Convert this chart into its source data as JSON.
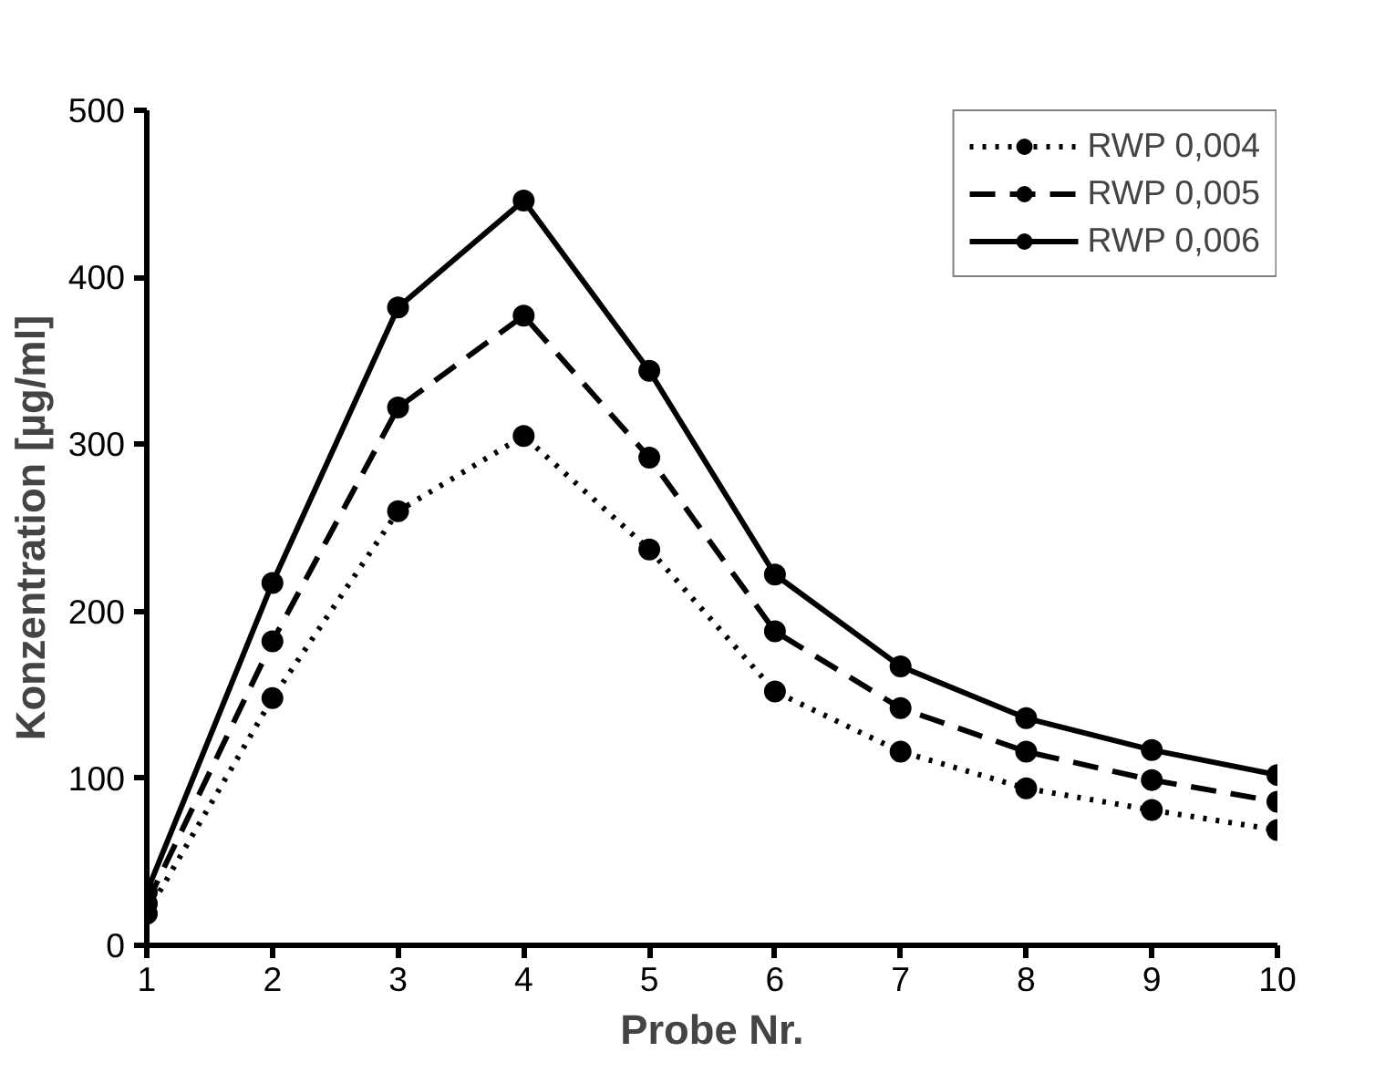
{
  "chart_data": {
    "type": "line",
    "xlabel": "Probe Nr.",
    "ylabel": "Konzentration [µg/ml]",
    "x": [
      1,
      2,
      3,
      4,
      5,
      6,
      7,
      8,
      9,
      10
    ],
    "xlim": [
      1,
      10
    ],
    "xticks": [
      1,
      2,
      3,
      4,
      5,
      6,
      7,
      8,
      9,
      10
    ],
    "ylim": [
      0,
      500
    ],
    "yticks": [
      0,
      100,
      200,
      300,
      400,
      500
    ],
    "grid": false,
    "legend": "top right",
    "marker": "circle",
    "series": [
      {
        "name": "RWP 0,006",
        "color": "#000000",
        "line_style": "solid",
        "values": [
          32,
          217,
          382,
          446,
          344,
          222,
          167,
          136,
          117,
          102
        ]
      },
      {
        "name": "RWP 0,005",
        "color": "#000000",
        "line_style": "dashed",
        "values": [
          25,
          182,
          322,
          377,
          292,
          188,
          142,
          116,
          99,
          86
        ]
      },
      {
        "name": "RWP 0,004",
        "color": "#000000",
        "line_style": "dotted",
        "values": [
          19,
          148,
          260,
          305,
          237,
          152,
          116,
          94,
          81,
          69
        ]
      }
    ]
  }
}
